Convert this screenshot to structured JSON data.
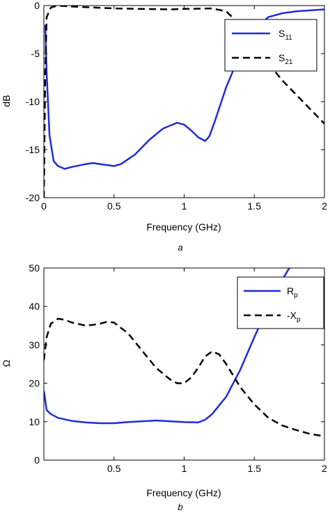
{
  "chart_data": [
    {
      "type": "line",
      "panel_label": "a",
      "xlabel": "Frequency (GHz)",
      "ylabel": "dB",
      "xlim": [
        0,
        2
      ],
      "ylim": [
        -20,
        0
      ],
      "xticks": [
        0,
        0.5,
        1,
        1.5,
        2
      ],
      "xtick_labels": [
        "0",
        "0.5",
        "1",
        "1.5",
        "2"
      ],
      "yticks": [
        0,
        -5,
        -10,
        -15,
        -20
      ],
      "ytick_labels": [
        "0",
        "-5",
        "-10",
        "-15",
        "-20"
      ],
      "legend_position": "top-right",
      "series": [
        {
          "name": "S11",
          "label_main": "S",
          "label_sub": "11",
          "color": "#1f2bd6",
          "dash": "solid",
          "x": [
            0.01,
            0.02,
            0.04,
            0.07,
            0.1,
            0.15,
            0.2,
            0.3,
            0.35,
            0.4,
            0.5,
            0.55,
            0.65,
            0.75,
            0.85,
            0.95,
            1.0,
            1.05,
            1.1,
            1.15,
            1.18,
            1.22,
            1.3,
            1.4,
            1.5,
            1.6,
            1.7,
            1.8,
            1.9,
            2.0
          ],
          "y": [
            -2,
            -7,
            -13.5,
            -16.2,
            -16.7,
            -17.0,
            -16.8,
            -16.5,
            -16.4,
            -16.5,
            -16.7,
            -16.5,
            -15.5,
            -14.0,
            -12.8,
            -12.2,
            -12.4,
            -13.0,
            -13.7,
            -14.1,
            -13.6,
            -12.0,
            -8.5,
            -5.0,
            -2.5,
            -1.2,
            -0.8,
            -0.6,
            -0.5,
            -0.4
          ]
        },
        {
          "name": "S21",
          "label_main": "S",
          "label_sub": "21",
          "color": "#000000",
          "dash": "dashed",
          "x": [
            0.0,
            0.01,
            0.02,
            0.05,
            0.1,
            0.2,
            0.5,
            0.9,
            1.0,
            1.2,
            1.3,
            1.4,
            1.5,
            1.6,
            1.7,
            1.8,
            1.9,
            2.0
          ],
          "y": [
            -20,
            -7,
            -1.2,
            -0.2,
            0.0,
            -0.1,
            -0.3,
            -0.4,
            -0.35,
            -0.3,
            -0.6,
            -2.0,
            -4.2,
            -6.0,
            -7.8,
            -9.3,
            -10.8,
            -12.3
          ]
        }
      ]
    },
    {
      "type": "line",
      "panel_label": "b",
      "xlabel": "Frequency (GHz)",
      "ylabel": "Ω",
      "xlim": [
        0,
        2
      ],
      "ylim": [
        0,
        50
      ],
      "xticks": [
        0.5,
        1,
        1.5,
        2
      ],
      "xtick_labels": [
        "0.5",
        "1",
        "1.5",
        "2"
      ],
      "yticks": [
        0,
        10,
        20,
        30,
        40,
        50
      ],
      "ytick_labels": [
        "0",
        "10",
        "20",
        "30",
        "40",
        "50"
      ],
      "legend_position": "top-right",
      "series": [
        {
          "name": "Rp",
          "label_main": "R",
          "label_sub": "p",
          "color": "#1f2bd6",
          "dash": "solid",
          "x": [
            0.0,
            0.02,
            0.05,
            0.1,
            0.2,
            0.3,
            0.4,
            0.5,
            0.6,
            0.7,
            0.8,
            0.9,
            1.0,
            1.1,
            1.15,
            1.2,
            1.3,
            1.4,
            1.5,
            1.6,
            1.7,
            1.75
          ],
          "y": [
            18,
            13,
            12,
            11,
            10.2,
            9.8,
            9.6,
            9.6,
            9.9,
            10.1,
            10.3,
            10.1,
            9.9,
            9.8,
            10.5,
            12.0,
            16.5,
            23.5,
            32.0,
            40.0,
            47.0,
            50.0
          ]
        },
        {
          "name": "-Xp",
          "label_main": "-X",
          "label_sub": "p",
          "color": "#000000",
          "dash": "dashed",
          "x": [
            0.0,
            0.02,
            0.05,
            0.1,
            0.15,
            0.2,
            0.3,
            0.35,
            0.4,
            0.45,
            0.5,
            0.6,
            0.7,
            0.8,
            0.9,
            0.95,
            1.0,
            1.05,
            1.1,
            1.15,
            1.2,
            1.25,
            1.3,
            1.35,
            1.4,
            1.5,
            1.6,
            1.7,
            1.8,
            1.9,
            2.0
          ],
          "y": [
            26,
            32,
            35.5,
            36.8,
            36.5,
            35.8,
            35.0,
            35.2,
            35.5,
            36.0,
            35.8,
            33.0,
            28.5,
            24.0,
            21.0,
            20.0,
            20.0,
            21.5,
            24.0,
            27.0,
            28.3,
            27.5,
            25.0,
            22.0,
            19.0,
            14.5,
            11.0,
            9.0,
            7.8,
            6.8,
            6.2
          ]
        }
      ]
    }
  ]
}
